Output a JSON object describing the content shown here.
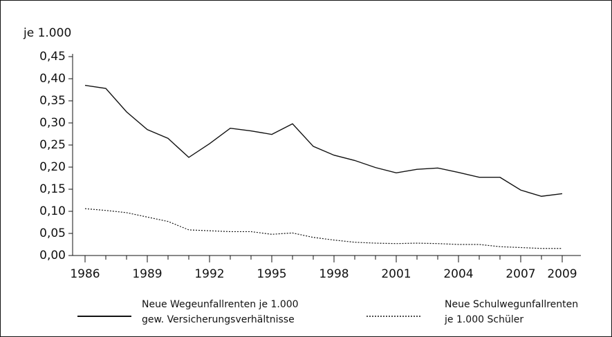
{
  "chart_data": {
    "type": "line",
    "ylabel": "je 1.000",
    "x": [
      1986,
      1987,
      1988,
      1989,
      1990,
      1991,
      1992,
      1993,
      1994,
      1995,
      1996,
      1997,
      1998,
      1999,
      2000,
      2001,
      2002,
      2003,
      2004,
      2005,
      2006,
      2007,
      2008,
      2009
    ],
    "xlim": [
      1985.4,
      2009.9
    ],
    "xticks": [
      1986,
      1989,
      1992,
      1995,
      1998,
      2001,
      2004,
      2007,
      2009
    ],
    "ylim": [
      0,
      0.45
    ],
    "yticks": [
      {
        "value": 0,
        "label": "0,00"
      },
      {
        "value": 0.05,
        "label": "0,05"
      },
      {
        "value": 0.1,
        "label": "0,10"
      },
      {
        "value": 0.15,
        "label": "0,15"
      },
      {
        "value": 0.2,
        "label": "0,20"
      },
      {
        "value": 0.25,
        "label": "0,25"
      },
      {
        "value": 0.3,
        "label": "0,30"
      },
      {
        "value": 0.35,
        "label": "0,35"
      },
      {
        "value": 0.4,
        "label": "0,40"
      },
      {
        "value": 0.45,
        "label": "0,45"
      }
    ],
    "series": [
      {
        "name": "Neue Wegeunfallrenten je 1.000\ngew. Versicherungsverhältnisse",
        "color": "#111111",
        "dash": "solid",
        "values": [
          0.385,
          0.378,
          0.325,
          0.285,
          0.265,
          0.222,
          0.253,
          0.288,
          0.282,
          0.274,
          0.298,
          0.247,
          0.227,
          0.215,
          0.199,
          0.187,
          0.195,
          0.198,
          0.188,
          0.177,
          0.177,
          0.148,
          0.134,
          0.14
        ]
      },
      {
        "name": "Neue Schulwegunfallrenten\nje 1.000 Schüler",
        "color": "#111111",
        "dash": "dotted",
        "values": [
          0.106,
          0.102,
          0.097,
          0.087,
          0.077,
          0.058,
          0.056,
          0.054,
          0.054,
          0.048,
          0.051,
          0.041,
          0.035,
          0.03,
          0.028,
          0.027,
          0.028,
          0.027,
          0.025,
          0.025,
          0.02,
          0.018,
          0.016,
          0.016
        ]
      }
    ]
  }
}
